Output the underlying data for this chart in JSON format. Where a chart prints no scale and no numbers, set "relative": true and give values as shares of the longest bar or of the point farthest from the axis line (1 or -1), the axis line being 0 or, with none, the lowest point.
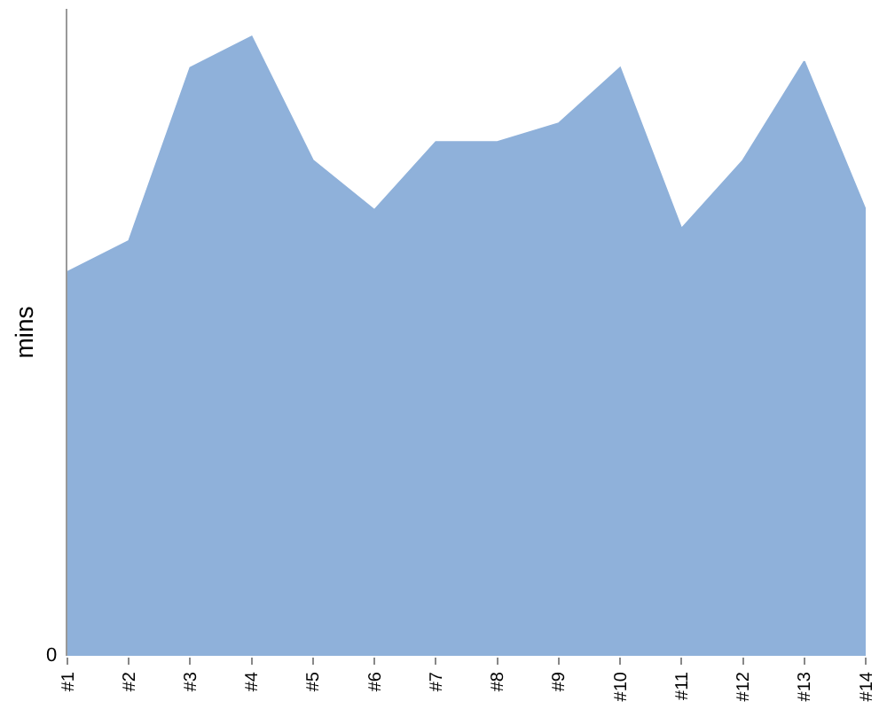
{
  "chart_data": {
    "type": "area",
    "relative": true,
    "ylabel": "mins",
    "annotations": [
      "0"
    ],
    "categories": [
      "#1",
      "#2",
      "#3",
      "#4",
      "#5",
      "#6",
      "#7",
      "#8",
      "#9",
      "#10",
      "#11",
      "#12",
      "#13",
      "#14"
    ],
    "series": [
      {
        "color": "#8fb1da",
        "values": [
          0.62,
          0.67,
          0.95,
          1,
          0.8,
          0.72,
          0.83,
          0.83,
          0.86,
          0.95,
          0.69,
          0.8,
          0.96,
          0.72
        ]
      }
    ],
    "line_style": "solid"
  }
}
